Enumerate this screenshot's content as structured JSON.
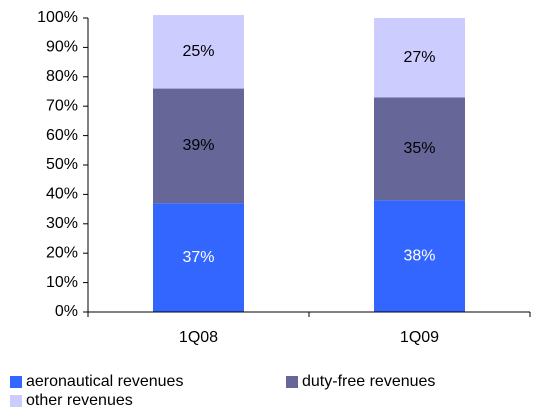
{
  "chart_data": {
    "type": "stacked_bar",
    "categories": [
      "1Q08",
      "1Q09"
    ],
    "series": [
      {
        "name": "aeronautical revenues",
        "color": "#3366ff",
        "label_color": "#ffffff",
        "values": [
          37,
          38
        ],
        "value_labels": [
          "37%",
          "38%"
        ]
      },
      {
        "name": "duty-free revenues",
        "color": "#666699",
        "label_color": "#000000",
        "values": [
          39,
          35
        ],
        "value_labels": [
          "39%",
          "35%"
        ]
      },
      {
        "name": "other revenues",
        "color": "#ccccff",
        "label_color": "#000000",
        "values": [
          25,
          27
        ],
        "value_labels": [
          "25%",
          "27%"
        ]
      }
    ],
    "ylim": [
      0,
      100
    ],
    "yticks": [
      {
        "value": 0,
        "label": "0%"
      },
      {
        "value": 10,
        "label": "10%"
      },
      {
        "value": 20,
        "label": "20%"
      },
      {
        "value": 30,
        "label": "30%"
      },
      {
        "value": 40,
        "label": "40%"
      },
      {
        "value": 50,
        "label": "50%"
      },
      {
        "value": 60,
        "label": "60%"
      },
      {
        "value": 70,
        "label": "70%"
      },
      {
        "value": 80,
        "label": "80%"
      },
      {
        "value": 90,
        "label": "90%"
      },
      {
        "value": 100,
        "label": "100%"
      }
    ],
    "grid": false,
    "legend": "bottom"
  }
}
